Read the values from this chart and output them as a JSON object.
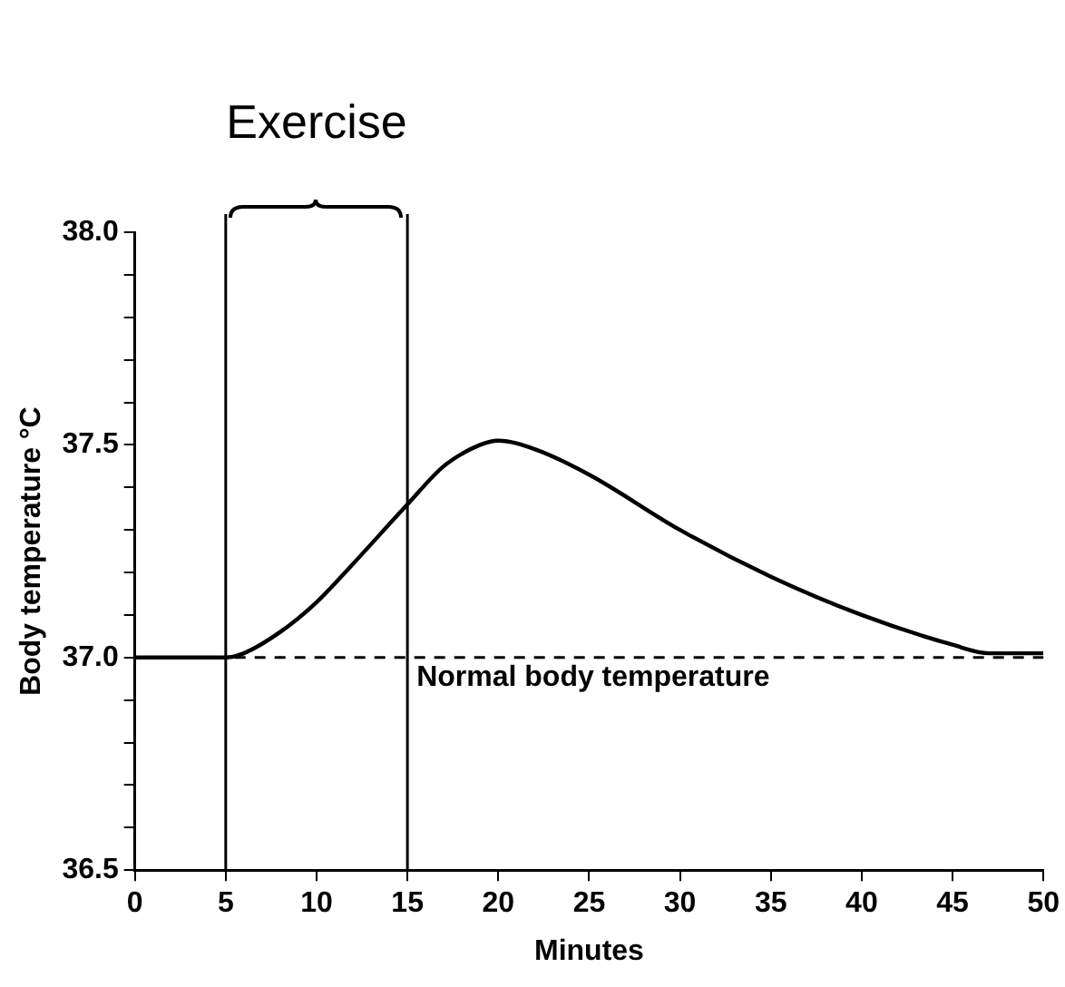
{
  "chart_data": {
    "type": "line",
    "xlabel": "Minutes",
    "ylabel": "Body temperature °C",
    "x": [
      0,
      5,
      6,
      8,
      10,
      12,
      15,
      17,
      19,
      20,
      22,
      25,
      30,
      35,
      40,
      45,
      47,
      50
    ],
    "series": [
      {
        "color": "#000000",
        "values": [
          37.0,
          37.0,
          37.01,
          37.06,
          37.13,
          37.22,
          37.36,
          37.45,
          37.5,
          37.51,
          37.49,
          37.43,
          37.3,
          37.19,
          37.1,
          37.03,
          37.01,
          37.01
        ]
      }
    ],
    "xlim": [
      0,
      50
    ],
    "xticks": [
      0,
      5,
      10,
      15,
      20,
      25,
      30,
      35,
      40,
      45,
      50
    ],
    "ylim": [
      36.5,
      38.0
    ],
    "yticks": [
      36.5,
      {
        "value": 36.6,
        "label": null
      },
      {
        "value": 36.7,
        "label": null
      },
      {
        "value": 36.8,
        "label": null
      },
      {
        "value": 36.9,
        "label": null
      },
      {
        "value": 37.0,
        "label": "37.0"
      },
      {
        "value": 37.1,
        "label": null
      },
      {
        "value": 37.2,
        "label": null
      },
      {
        "value": 37.3,
        "label": null
      },
      {
        "value": 37.4,
        "label": null
      },
      {
        "value": 37.5,
        "label": "37.5"
      },
      {
        "value": 37.6,
        "label": null
      },
      {
        "value": 37.7,
        "label": null
      },
      {
        "value": 37.8,
        "label": null
      },
      {
        "value": 37.9,
        "label": null
      },
      {
        "value": 38.0,
        "label": "38.0"
      }
    ],
    "ref_lines": [
      {
        "axis": "y",
        "value": 37.0,
        "label": "Normal body temperature",
        "line_style": "dashed"
      },
      {
        "axis": "x",
        "value": 5
      },
      {
        "axis": "x",
        "value": 15
      }
    ],
    "annotations": [
      "Exercise"
    ],
    "grid": false,
    "legend": false,
    "marker": "none",
    "line_style": "solid"
  }
}
